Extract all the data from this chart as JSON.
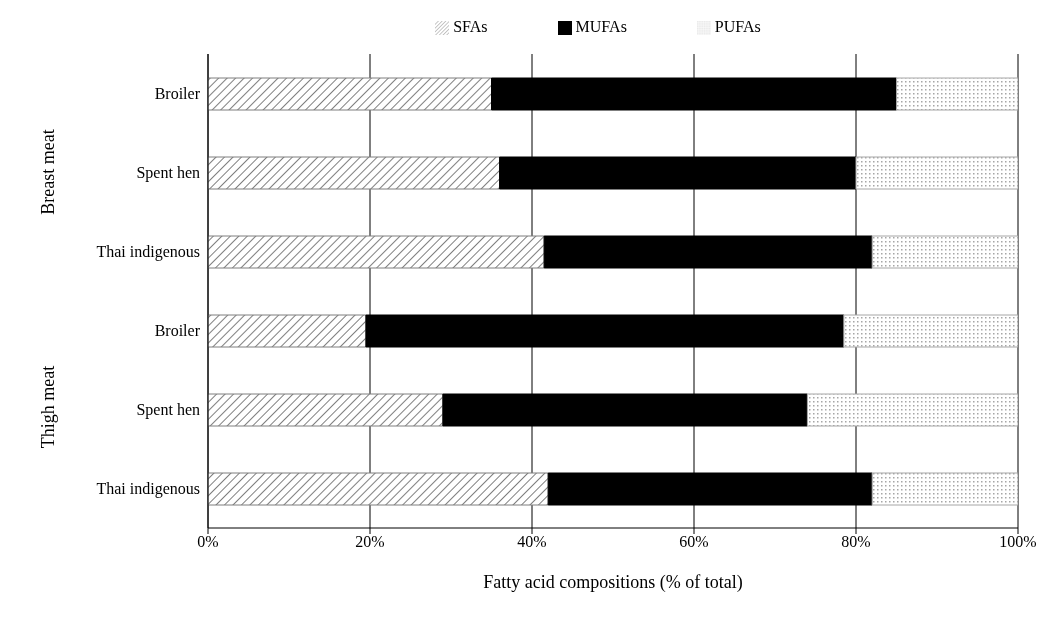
{
  "chart_data": {
    "type": "bar",
    "orientation": "horizontal",
    "stacked": true,
    "categories": [
      "Broiler",
      "Spent hen",
      "Thai indigenous",
      "Broiler",
      "Spent hen",
      "Thai indigenous"
    ],
    "series": [
      {
        "name": "SFAs",
        "color": "#7f7f7f",
        "values": [
          35,
          36,
          41.5,
          19.5,
          29,
          42
        ]
      },
      {
        "name": "MUFAs",
        "color": "#000000",
        "values": [
          50,
          44,
          40.5,
          59,
          45,
          40
        ]
      },
      {
        "name": "PUFAs",
        "color": "#a6a6a6",
        "values": [
          15,
          20,
          18,
          21.5,
          26,
          18
        ]
      }
    ],
    "xlabel": "Fatty acid compositions (% of total)",
    "xlim": [
      0,
      100
    ],
    "xticks": [
      {
        "value": 0,
        "label": "0%"
      },
      {
        "value": 20,
        "label": "20%"
      },
      {
        "value": 40,
        "label": "40%"
      },
      {
        "value": 60,
        "label": "60%"
      },
      {
        "value": 80,
        "label": "80%"
      },
      {
        "value": 100,
        "label": "100%"
      }
    ],
    "annotations": [
      "Breast meat",
      "Thigh meat"
    ],
    "grid": "x",
    "legend": "top"
  }
}
